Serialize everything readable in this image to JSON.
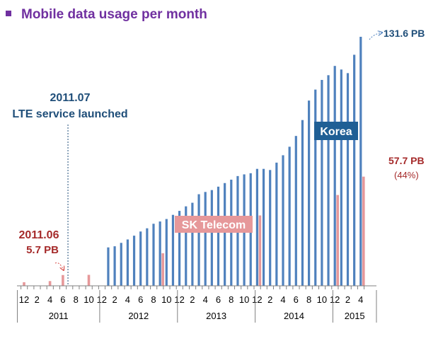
{
  "title": "Mobile data usage per month",
  "colors": {
    "korea": "#4f81bd",
    "skt": "#e6989a",
    "blue_text": "#1f4e79",
    "red_text": "#a52a2a",
    "title": "#7030a0"
  },
  "chart_data": {
    "type": "bar",
    "title": "Mobile data usage per month",
    "unit": "PB",
    "ylim": [
      0,
      131.6
    ],
    "categories": [
      "2010-12",
      "2011-01",
      "2011-02",
      "2011-03",
      "2011-04",
      "2011-05",
      "2011-06",
      "2011-07",
      "2011-08",
      "2011-09",
      "2011-10",
      "2011-11",
      "2011-12",
      "2012-01",
      "2012-02",
      "2012-03",
      "2012-04",
      "2012-05",
      "2012-06",
      "2012-07",
      "2012-08",
      "2012-09",
      "2012-10",
      "2012-11",
      "2012-12",
      "2013-01",
      "2013-02",
      "2013-03",
      "2013-04",
      "2013-05",
      "2013-06",
      "2013-07",
      "2013-08",
      "2013-09",
      "2013-10",
      "2013-11",
      "2013-12",
      "2014-01",
      "2014-02",
      "2014-03",
      "2014-04",
      "2014-05",
      "2014-06",
      "2014-07",
      "2014-08",
      "2014-09",
      "2014-10",
      "2014-11",
      "2014-12",
      "2015-01",
      "2015-02",
      "2015-03",
      "2015-04"
    ],
    "month_ticks": [
      "12",
      "2",
      "4",
      "6",
      "8",
      "10",
      "12",
      "2",
      "4",
      "6",
      "8",
      "10",
      "12",
      "2",
      "4",
      "6",
      "8",
      "10",
      "12",
      "2",
      "4",
      "6",
      "8",
      "10",
      "12",
      "2",
      "4"
    ],
    "years": [
      "2011",
      "2012",
      "2013",
      "2014",
      "2015"
    ],
    "series": [
      {
        "name": "Korea",
        "values": [
          null,
          null,
          null,
          null,
          null,
          null,
          null,
          null,
          null,
          null,
          null,
          null,
          null,
          20.3,
          20.9,
          22.7,
          24.5,
          26.5,
          28.7,
          30.4,
          32.8,
          34.0,
          35.3,
          37.5,
          39.6,
          42.0,
          43.9,
          48.4,
          49.6,
          50.6,
          52.4,
          54.3,
          56.1,
          58.0,
          58.9,
          59.5,
          61.8,
          61.8,
          61.2,
          65.1,
          69.0,
          73.5,
          79.2,
          87.6,
          97.9,
          103.7,
          108.8,
          111.3,
          116.2,
          114.3,
          112.4,
          122.1,
          131.6
        ]
      },
      {
        "name": "SK Telecom",
        "values": [
          1.9,
          null,
          null,
          null,
          2.5,
          null,
          5.7,
          null,
          null,
          null,
          5.8,
          null,
          null,
          null,
          null,
          null,
          null,
          null,
          null,
          null,
          null,
          17.2,
          null,
          null,
          null,
          null,
          null,
          null,
          null,
          null,
          null,
          null,
          null,
          null,
          null,
          null,
          37.2,
          null,
          null,
          null,
          null,
          null,
          null,
          null,
          null,
          null,
          null,
          null,
          48.0,
          null,
          null,
          null,
          57.7
        ]
      }
    ],
    "annotations": {
      "launch_date": "2011.07",
      "launch_text": "LTE service launched",
      "start_date": "2011.06",
      "start_value": "5.7 PB",
      "korea_label": "Korea",
      "skt_label": "SK Telecom",
      "korea_end": "131.6 PB",
      "skt_end": "57.7 PB",
      "skt_share": "(44%)"
    }
  }
}
